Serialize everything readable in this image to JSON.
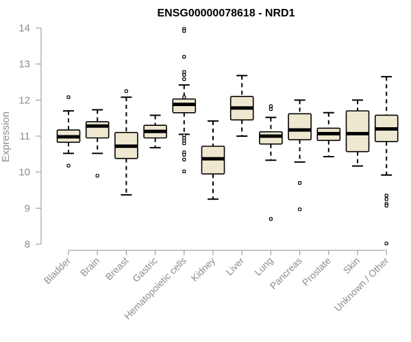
{
  "chart_data": {
    "type": "boxplot",
    "title": "ENSG00000078618 - NRD1",
    "xlabel": "",
    "ylabel": "Expression",
    "ylim": [
      8,
      14
    ],
    "yticks": [
      8,
      9,
      10,
      11,
      12,
      13,
      14
    ],
    "grid": false,
    "box_fill": "#efe8d0",
    "line_color": "#000000",
    "axis_color": "#8c8c8c",
    "categories": [
      "Bladder",
      "Brain",
      "Breast",
      "Gastric",
      "Hematopoietic cells",
      "Kidney",
      "Liver",
      "Lung",
      "Pancreas",
      "Prostate",
      "Skin",
      "Unknown / Other"
    ],
    "boxes": [
      {
        "name": "Bladder",
        "whisker_low": 10.52,
        "q1": 10.83,
        "median": 10.98,
        "q3": 11.17,
        "whisker_high": 11.7,
        "outliers": [
          12.08,
          10.18
        ]
      },
      {
        "name": "Brain",
        "whisker_low": 10.52,
        "q1": 10.95,
        "median": 11.28,
        "q3": 11.4,
        "whisker_high": 11.73,
        "outliers": [
          9.9
        ]
      },
      {
        "name": "Breast",
        "whisker_low": 9.37,
        "q1": 10.38,
        "median": 10.72,
        "q3": 11.1,
        "whisker_high": 12.08,
        "outliers": [
          12.25
        ]
      },
      {
        "name": "Gastric",
        "whisker_low": 10.68,
        "q1": 10.95,
        "median": 11.13,
        "q3": 11.3,
        "whisker_high": 11.58,
        "outliers": []
      },
      {
        "name": "Hematopoietic cells",
        "whisker_low": 11.05,
        "q1": 11.65,
        "median": 11.88,
        "q3": 12.03,
        "whisker_high": 12.42,
        "outliers": [
          13.98,
          13.92,
          13.2,
          12.78,
          12.7,
          12.58,
          12.08,
          11.02,
          10.95,
          10.88,
          10.8,
          10.55,
          10.48,
          10.35,
          10.02
        ]
      },
      {
        "name": "Kidney",
        "whisker_low": 9.25,
        "q1": 9.95,
        "median": 10.37,
        "q3": 10.72,
        "whisker_high": 11.42,
        "outliers": []
      },
      {
        "name": "Liver",
        "whisker_low": 11.0,
        "q1": 11.45,
        "median": 11.78,
        "q3": 12.1,
        "whisker_high": 12.68,
        "outliers": []
      },
      {
        "name": "Lung",
        "whisker_low": 10.33,
        "q1": 10.78,
        "median": 11.0,
        "q3": 11.12,
        "whisker_high": 11.52,
        "outliers": [
          11.83,
          11.75,
          8.7
        ]
      },
      {
        "name": "Pancreas",
        "whisker_low": 10.28,
        "q1": 10.9,
        "median": 11.17,
        "q3": 11.62,
        "whisker_high": 12.0,
        "outliers": [
          9.7,
          8.97
        ]
      },
      {
        "name": "Prostate",
        "whisker_low": 10.43,
        "q1": 10.88,
        "median": 11.07,
        "q3": 11.22,
        "whisker_high": 11.65,
        "outliers": []
      },
      {
        "name": "Skin",
        "whisker_low": 10.17,
        "q1": 10.57,
        "median": 11.07,
        "q3": 11.7,
        "whisker_high": 12.0,
        "outliers": []
      },
      {
        "name": "Unknown / Other",
        "whisker_low": 9.92,
        "q1": 10.85,
        "median": 11.2,
        "q3": 11.58,
        "whisker_high": 12.65,
        "outliers": [
          9.35,
          9.25,
          9.12,
          9.07,
          8.02
        ]
      }
    ]
  }
}
